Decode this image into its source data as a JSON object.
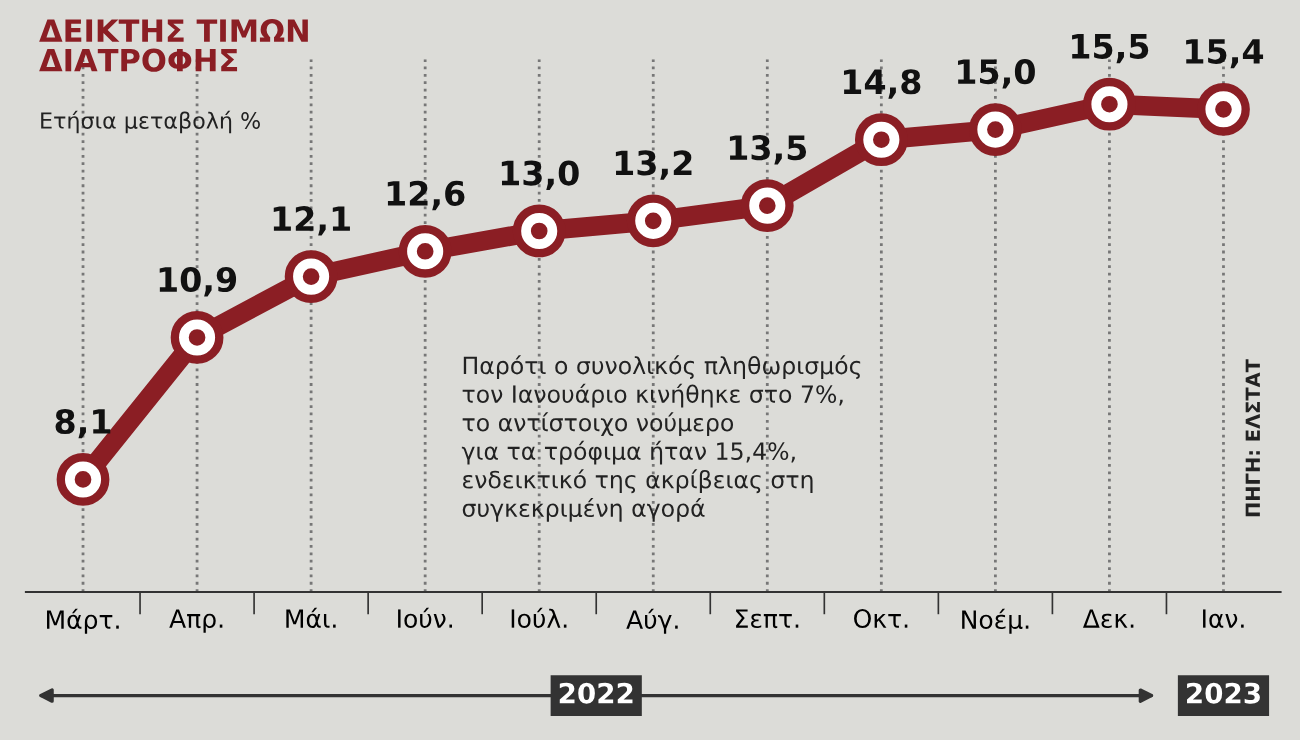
{
  "chart_data": {
    "type": "line",
    "title": "ΔΕΙΚΤΗΣ ΤΙΜΩΝ\nΔΙΑΤΡΟΦΗΣ",
    "subtitle": "Ετήσια μεταβολή %",
    "categories": [
      "Μάρτ.",
      "Απρ.",
      "Μάι.",
      "Ιούν.",
      "Ιούλ.",
      "Αύγ.",
      "Σεπτ.",
      "Οκτ.",
      "Νοέμ.",
      "Δεκ.",
      "Ιαν."
    ],
    "series": [
      {
        "color": "#8b1e24",
        "values": [
          8.1,
          10.9,
          12.1,
          12.6,
          13.0,
          13.2,
          13.5,
          14.8,
          15.0,
          15.5,
          15.4
        ],
        "value_labels": [
          "8,1",
          "10,9",
          "12,1",
          "12,6",
          "13,0",
          "13,2",
          "13,5",
          "14,8",
          "15,0",
          "15,5",
          "15,4"
        ]
      }
    ],
    "data_labels": true,
    "marker": "circle",
    "grid": "x",
    "tick_labels": "x",
    "annotations": [
      "Παρότι ο συνολικός πληθωρισμός\nτον Ιανουάριο κινήθηκε στο 7%,\nτο αντίστοιχο νούμερο\nγια τα τρόφιμα ήταν 15,4%,\nενδεικτικό της ακρίβειας στη\nσυγκεκριμένη αγορά",
      "ΠΗΓΗ: ΕΛΣΤΑΤ",
      "2022",
      "2023"
    ]
  }
}
